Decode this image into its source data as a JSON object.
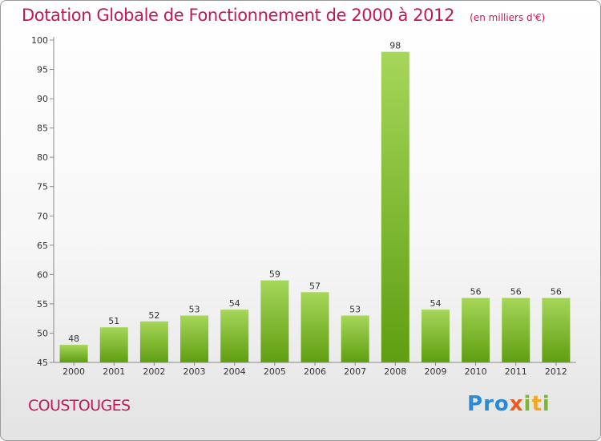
{
  "header": {
    "title": "Dotation Globale de Fonctionnement de 2000 à 2012",
    "unit": "(en milliers d'€)"
  },
  "commune": "COUSTOUGES",
  "logo": {
    "text": "Proxiti",
    "letters": [
      "P",
      "r",
      "o",
      "x",
      "i",
      "t",
      "i"
    ],
    "colors": [
      "#2a8ad4",
      "#2a8ad4",
      "#2a8ad4",
      "#e85c20",
      "#7cb82f",
      "#f5a623",
      "#7cb82f"
    ]
  },
  "colors": {
    "bar_light": "#a6d65a",
    "bar_dark": "#5f9e10",
    "title": "#c2185b",
    "axis": "#888888"
  },
  "chart_data": {
    "type": "bar",
    "title": "Dotation Globale de Fonctionnement de 2000 à 2012",
    "subtitle": "(en milliers d'€)",
    "categories": [
      "2000",
      "2001",
      "2002",
      "2003",
      "2004",
      "2005",
      "2006",
      "2007",
      "2008",
      "2009",
      "2010",
      "2011",
      "2012"
    ],
    "values": [
      48,
      51,
      52,
      53,
      54,
      59,
      57,
      53,
      98,
      54,
      56,
      56,
      56
    ],
    "ylim": [
      45,
      100
    ],
    "yticks": [
      45,
      50,
      55,
      60,
      65,
      70,
      75,
      80,
      85,
      90,
      95,
      100
    ],
    "grid": false,
    "xlabel": "",
    "ylabel": ""
  }
}
